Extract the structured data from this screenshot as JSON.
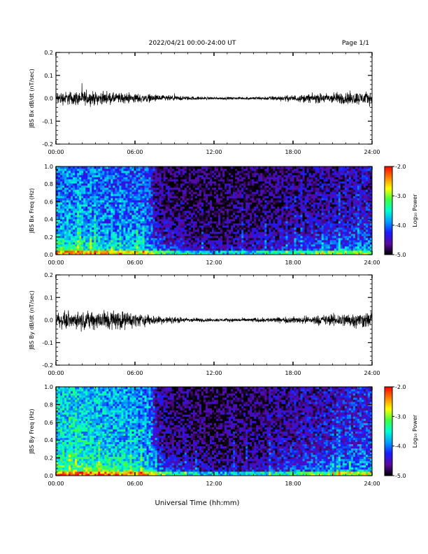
{
  "header": {
    "title": "2022/04/21  00:00-24:00 UT",
    "page": "Page 1/1"
  },
  "footer": {
    "xlabel": "Universal Time (hh:mm)"
  },
  "colors": {
    "trace": "#000000",
    "colormap": [
      "#000000",
      "#5a0aa0",
      "#1a1aff",
      "#00a0ff",
      "#00ffd0",
      "#40ff40",
      "#ffff00",
      "#ff8000",
      "#ff0000"
    ]
  },
  "chart_data": [
    {
      "type": "line",
      "ylabel": "JBS Bx dB/dt (nT/sec)",
      "x_ticks": [
        "00:00",
        "06:00",
        "12:00",
        "18:00",
        "24:00"
      ],
      "y_ticks": [
        "0.2",
        "0.1",
        "0.0",
        "-0.1",
        "-0.2"
      ],
      "xlim": [
        0,
        24
      ],
      "ylim": [
        -0.2,
        0.2
      ],
      "envelope": {
        "hours": [
          0,
          2,
          4,
          6,
          8,
          10,
          12,
          14,
          16,
          18,
          20,
          22,
          24
        ],
        "amplitude": [
          0.04,
          0.045,
          0.035,
          0.03,
          0.02,
          0.012,
          0.008,
          0.008,
          0.012,
          0.02,
          0.03,
          0.04,
          0.04
        ]
      },
      "series": [
        {
          "values_summary": "noise centered on 0.0"
        }
      ]
    },
    {
      "type": "heatmap",
      "ylabel": "JBS Bx Freq (Hz)",
      "x_ticks": [
        "00:00",
        "06:00",
        "12:00",
        "18:00",
        "24:00"
      ],
      "y_ticks": [
        "1.0",
        "0.8",
        "0.6",
        "0.4",
        "0.2",
        "0.0"
      ],
      "xlim": [
        0,
        24
      ],
      "ylim": [
        0,
        1.0
      ],
      "colorbar_label": "Log₁₀ Power",
      "colorbar_ticks": [
        "-2.0",
        "-3.0",
        "-4.0",
        "-5.0"
      ],
      "zlim": [
        -5.0,
        -2.0
      ],
      "level_profile": {
        "hours": [
          0,
          2,
          4,
          6,
          7.2,
          7.6,
          9,
          12,
          15,
          18,
          21,
          24
        ],
        "log_power_low_freq": [
          -3.1,
          -3.2,
          -3.3,
          -3.4,
          -3.5,
          -3.8,
          -4.1,
          -4.4,
          -4.3,
          -4.1,
          -3.8,
          -3.6
        ],
        "log_power_high_freq": [
          -4.0,
          -4.0,
          -4.1,
          -4.1,
          -4.2,
          -4.7,
          -4.8,
          -4.9,
          -4.8,
          -4.7,
          -4.6,
          -4.5
        ]
      }
    },
    {
      "type": "line",
      "ylabel": "JBS By dB/dt (nT/sec)",
      "x_ticks": [
        "00:00",
        "06:00",
        "12:00",
        "18:00",
        "24:00"
      ],
      "y_ticks": [
        "0.2",
        "0.1",
        "0.0",
        "-0.1",
        "-0.2"
      ],
      "xlim": [
        0,
        24
      ],
      "ylim": [
        -0.2,
        0.2
      ],
      "envelope": {
        "hours": [
          0,
          2,
          4,
          6,
          8,
          10,
          12,
          14,
          16,
          18,
          20,
          22,
          24
        ],
        "amplitude": [
          0.05,
          0.05,
          0.07,
          0.045,
          0.025,
          0.015,
          0.01,
          0.012,
          0.015,
          0.02,
          0.03,
          0.045,
          0.05
        ]
      },
      "series": [
        {
          "values_summary": "noise centered on 0.0"
        }
      ]
    },
    {
      "type": "heatmap",
      "ylabel": "JBS By Freq (Hz)",
      "x_ticks": [
        "00:00",
        "06:00",
        "12:00",
        "18:00",
        "24:00"
      ],
      "y_ticks": [
        "1.0",
        "0.8",
        "0.6",
        "0.4",
        "0.2",
        "0.0"
      ],
      "xlim": [
        0,
        24
      ],
      "ylim": [
        0,
        1.0
      ],
      "colorbar_label": "Log₁₀ Power",
      "colorbar_ticks": [
        "-2.0",
        "-3.0",
        "-4.0",
        "-5.0"
      ],
      "zlim": [
        -5.0,
        -2.0
      ],
      "level_profile": {
        "hours": [
          0,
          2,
          4,
          6,
          7.2,
          7.6,
          9,
          12,
          15,
          18,
          21,
          24
        ],
        "log_power_low_freq": [
          -3.0,
          -3.0,
          -3.1,
          -3.2,
          -3.4,
          -3.7,
          -4.1,
          -4.4,
          -4.3,
          -4.0,
          -3.7,
          -3.5
        ],
        "log_power_high_freq": [
          -3.7,
          -3.7,
          -3.8,
          -3.9,
          -4.0,
          -4.6,
          -4.8,
          -4.9,
          -4.8,
          -4.6,
          -4.5,
          -4.3
        ]
      }
    }
  ]
}
